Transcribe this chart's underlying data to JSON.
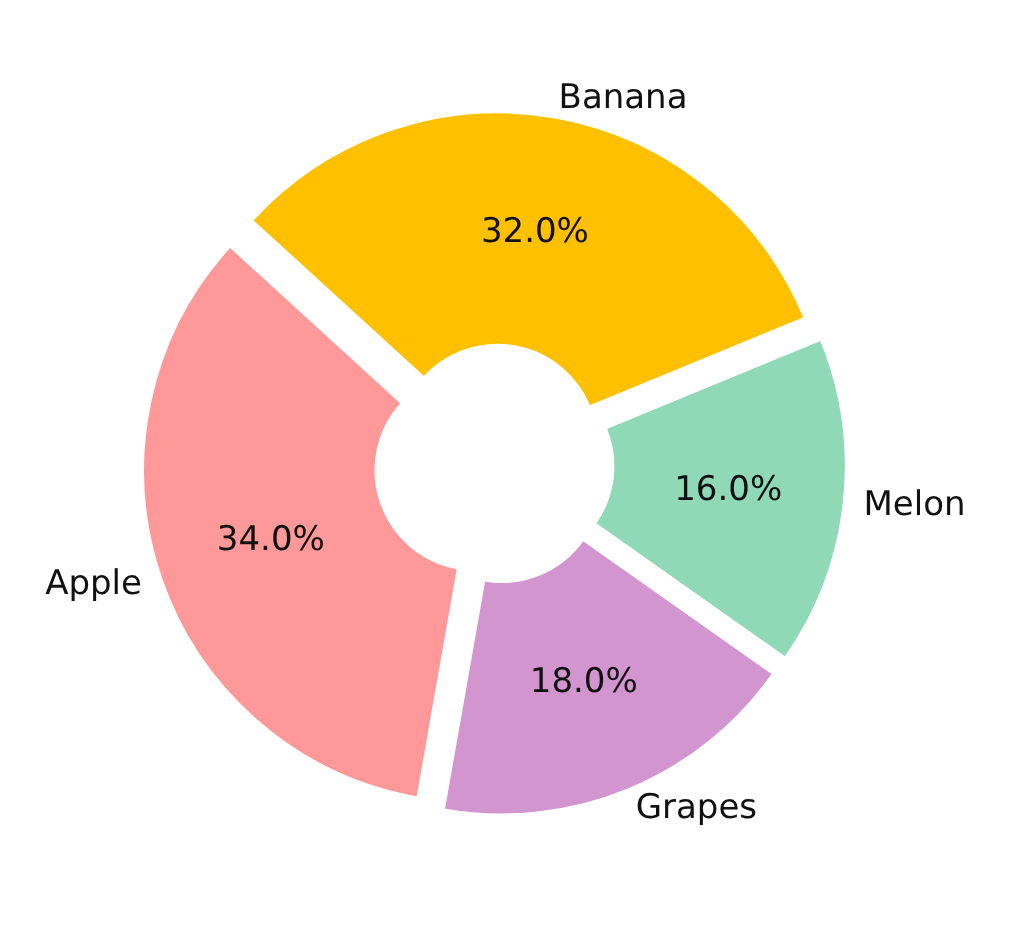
{
  "chart_data": {
    "type": "donut",
    "categories": [
      "Apple",
      "Banana",
      "Melon",
      "Grapes"
    ],
    "values": [
      34,
      32,
      16,
      18
    ],
    "colors": [
      "#ff9999",
      "#ffc000",
      "#8fd9b6",
      "#d395d0"
    ],
    "value_labels": [
      "34.0%",
      "32.0%",
      "16.0%",
      "18.0%"
    ],
    "legend": false
  }
}
